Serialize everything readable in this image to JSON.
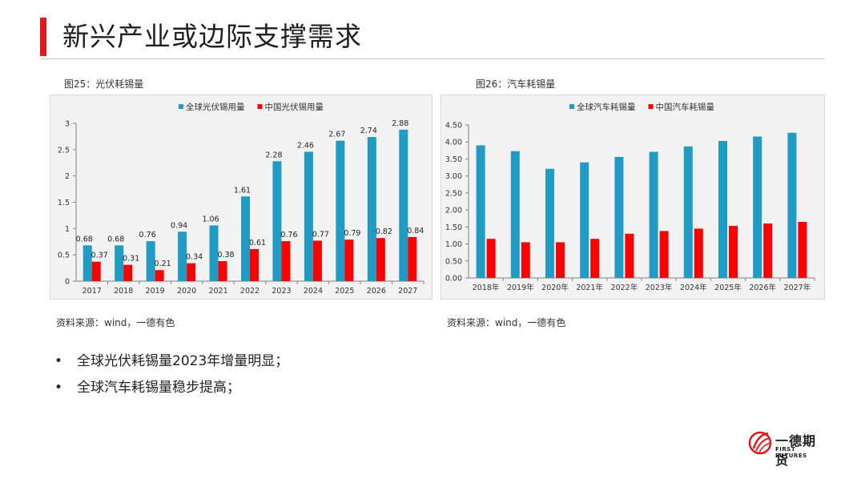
{
  "page": {
    "title": "新兴产业或边际支撑需求",
    "accent": "#e31a1c"
  },
  "figures": [
    {
      "caption": "图25：光伏耗锡量",
      "source": "资料来源：wind，一德有色"
    },
    {
      "caption": "图26：汽车耗锡量",
      "source": "资料来源：wind，一德有色"
    }
  ],
  "bullets": [
    "全球光伏耗锡量2023年增量明显；",
    "全球汽车耗锡量稳步提高；"
  ],
  "logo": {
    "name": "一德期货",
    "sub": "FIRST FUTURES"
  },
  "chart_data": [
    {
      "type": "bar",
      "categories": [
        "2017",
        "2018",
        "2019",
        "2020",
        "2021",
        "2022",
        "2023",
        "2024",
        "2025",
        "2026",
        "2027"
      ],
      "series": [
        {
          "name": "全球光伏锡用量",
          "color": "#1f9bc4",
          "values": [
            0.68,
            0.68,
            0.76,
            0.94,
            1.06,
            1.61,
            2.28,
            2.46,
            2.67,
            2.74,
            2.88
          ]
        },
        {
          "name": "中国光伏锡用量",
          "color": "#ff0000",
          "values": [
            0.37,
            0.31,
            0.21,
            0.34,
            0.38,
            0.61,
            0.76,
            0.77,
            0.79,
            0.82,
            0.84
          ]
        }
      ],
      "ylim": [
        0,
        3
      ],
      "yticks": [
        "0",
        "0.5",
        "1",
        "1.5",
        "2",
        "2.5",
        "3"
      ],
      "data_labels": true,
      "legend": "top",
      "grid": false
    },
    {
      "type": "bar",
      "categories": [
        "2018年",
        "2019年",
        "2020年",
        "2021年",
        "2022年",
        "2023年",
        "2024年",
        "2025年",
        "2026年",
        "2027年"
      ],
      "series": [
        {
          "name": "全球汽车耗锡量",
          "color": "#1f9bc4",
          "values": [
            3.9,
            3.73,
            3.21,
            3.4,
            3.56,
            3.71,
            3.87,
            4.03,
            4.16,
            4.27
          ]
        },
        {
          "name": "中国汽车耗锡量",
          "color": "#ff0000",
          "values": [
            1.15,
            1.05,
            1.05,
            1.15,
            1.3,
            1.38,
            1.45,
            1.53,
            1.6,
            1.65
          ]
        }
      ],
      "ylim": [
        0,
        4.5
      ],
      "yticks": [
        "0.00",
        "0.50",
        "1.00",
        "1.50",
        "2.00",
        "2.50",
        "3.00",
        "3.50",
        "4.00",
        "4.50"
      ],
      "data_labels": false,
      "legend": "top",
      "grid": false
    }
  ]
}
